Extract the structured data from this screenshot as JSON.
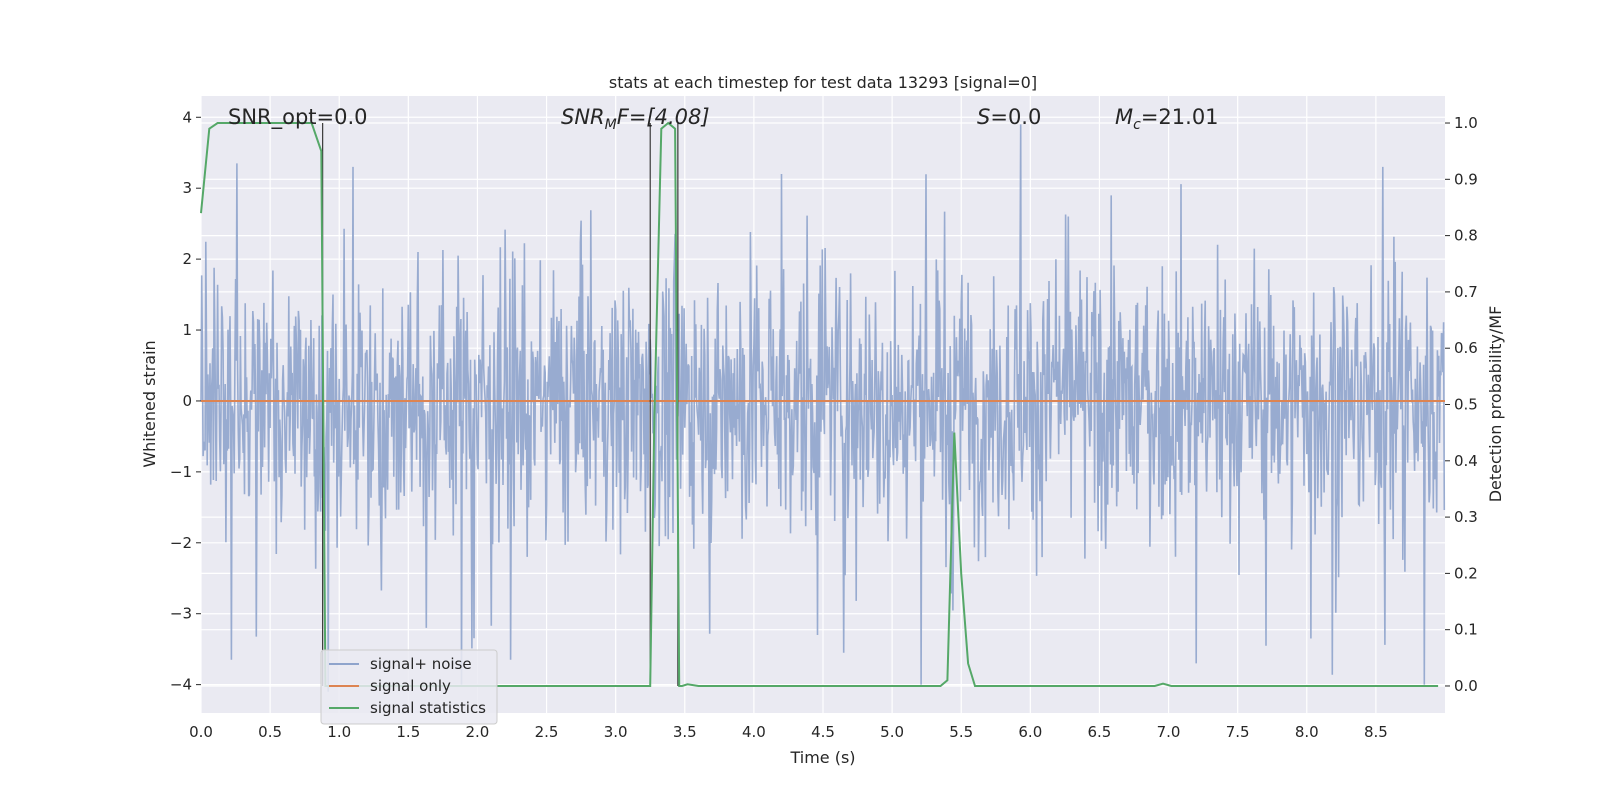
{
  "chart_data": {
    "type": "line",
    "title": "stats at each timestep for test data 13293 [signal=0]",
    "xlabel": "Time (s)",
    "ylabel": "Whitened strain",
    "y2label": "Detection probability/MF",
    "xlim": [
      0.0,
      9.0
    ],
    "ylim": [
      -4.4,
      4.3
    ],
    "y2lim": [
      -0.048,
      1.048
    ],
    "xticks": [
      "0.0",
      "0.5",
      "1.0",
      "1.5",
      "2.0",
      "2.5",
      "3.0",
      "3.5",
      "4.0",
      "4.5",
      "5.0",
      "5.5",
      "6.0",
      "6.5",
      "7.0",
      "7.5",
      "8.0",
      "8.5"
    ],
    "yticks": [
      "4",
      "3",
      "2",
      "1",
      "0",
      "−1",
      "−2",
      "−3",
      "−4"
    ],
    "y2ticks": [
      "1.0",
      "0.9",
      "0.8",
      "0.7",
      "0.6",
      "0.5",
      "0.4",
      "0.3",
      "0.2",
      "0.1",
      "0.0"
    ],
    "grid": true,
    "legend_position": "lower-left",
    "annotations": {
      "snr_opt": "SNR_opt=0.0",
      "snr_mf_main": "SNR",
      "snr_mf_sub": "M",
      "snr_mf_rest": "F=[4.08]",
      "s_main": "S",
      "s_rest": "=0.0",
      "mc_main": "M",
      "mc_sub": "c",
      "mc_rest": "=21.01"
    },
    "series": [
      {
        "name": "signal+ noise",
        "color": "#8fa4cc",
        "axis": "left",
        "sample_rate_hz": 200,
        "amplitude_envelope": [
          -4.0,
          4.0
        ],
        "peak_values": [
          {
            "x": 0.26,
            "y": 3.35
          },
          {
            "x": 0.22,
            "y": -3.65
          },
          {
            "x": 0.92,
            "y": -4.1
          },
          {
            "x": 1.1,
            "y": 3.3
          },
          {
            "x": 1.63,
            "y": -3.2
          },
          {
            "x": 2.24,
            "y": -3.65
          },
          {
            "x": 4.2,
            "y": 3.2
          },
          {
            "x": 4.46,
            "y": -3.3
          },
          {
            "x": 4.65,
            "y": -3.55
          },
          {
            "x": 5.93,
            "y": 3.9
          },
          {
            "x": 7.2,
            "y": -3.7
          },
          {
            "x": 8.03,
            "y": -3.35
          },
          {
            "x": 8.55,
            "y": 3.3
          },
          {
            "x": 8.85,
            "y": -4.0
          }
        ]
      },
      {
        "name": "signal only",
        "color": "#dd8452",
        "axis": "left",
        "x": [
          0.0,
          9.0
        ],
        "y": [
          0.0,
          0.0
        ]
      },
      {
        "name": "signal statistics",
        "color": "#55a868",
        "axis": "right",
        "x": [
          0.0,
          0.06,
          0.12,
          0.2,
          0.5,
          0.8,
          0.87,
          0.9,
          0.95,
          1.0,
          3.0,
          3.2,
          3.25,
          3.28,
          3.33,
          3.38,
          3.43,
          3.46,
          3.48,
          3.52,
          3.6,
          5.0,
          5.35,
          5.4,
          5.45,
          5.5,
          5.55,
          5.6,
          6.5,
          6.9,
          6.96,
          7.02,
          7.5,
          8.0,
          8.95
        ],
        "y": [
          0.84,
          0.99,
          1.0,
          1.0,
          1.0,
          1.0,
          0.95,
          0.0,
          0.0,
          0.0,
          0.0,
          0.0,
          0.0,
          0.48,
          0.99,
          1.0,
          0.99,
          0.0,
          0.0,
          0.003,
          0.0,
          0.0,
          0.0,
          0.01,
          0.45,
          0.2,
          0.04,
          0.0,
          0.0,
          0.0,
          0.004,
          0.0,
          0.0,
          0.0,
          0.0
        ]
      }
    ],
    "vertical_markers_x": [
      0.88,
      3.25,
      3.45
    ]
  }
}
